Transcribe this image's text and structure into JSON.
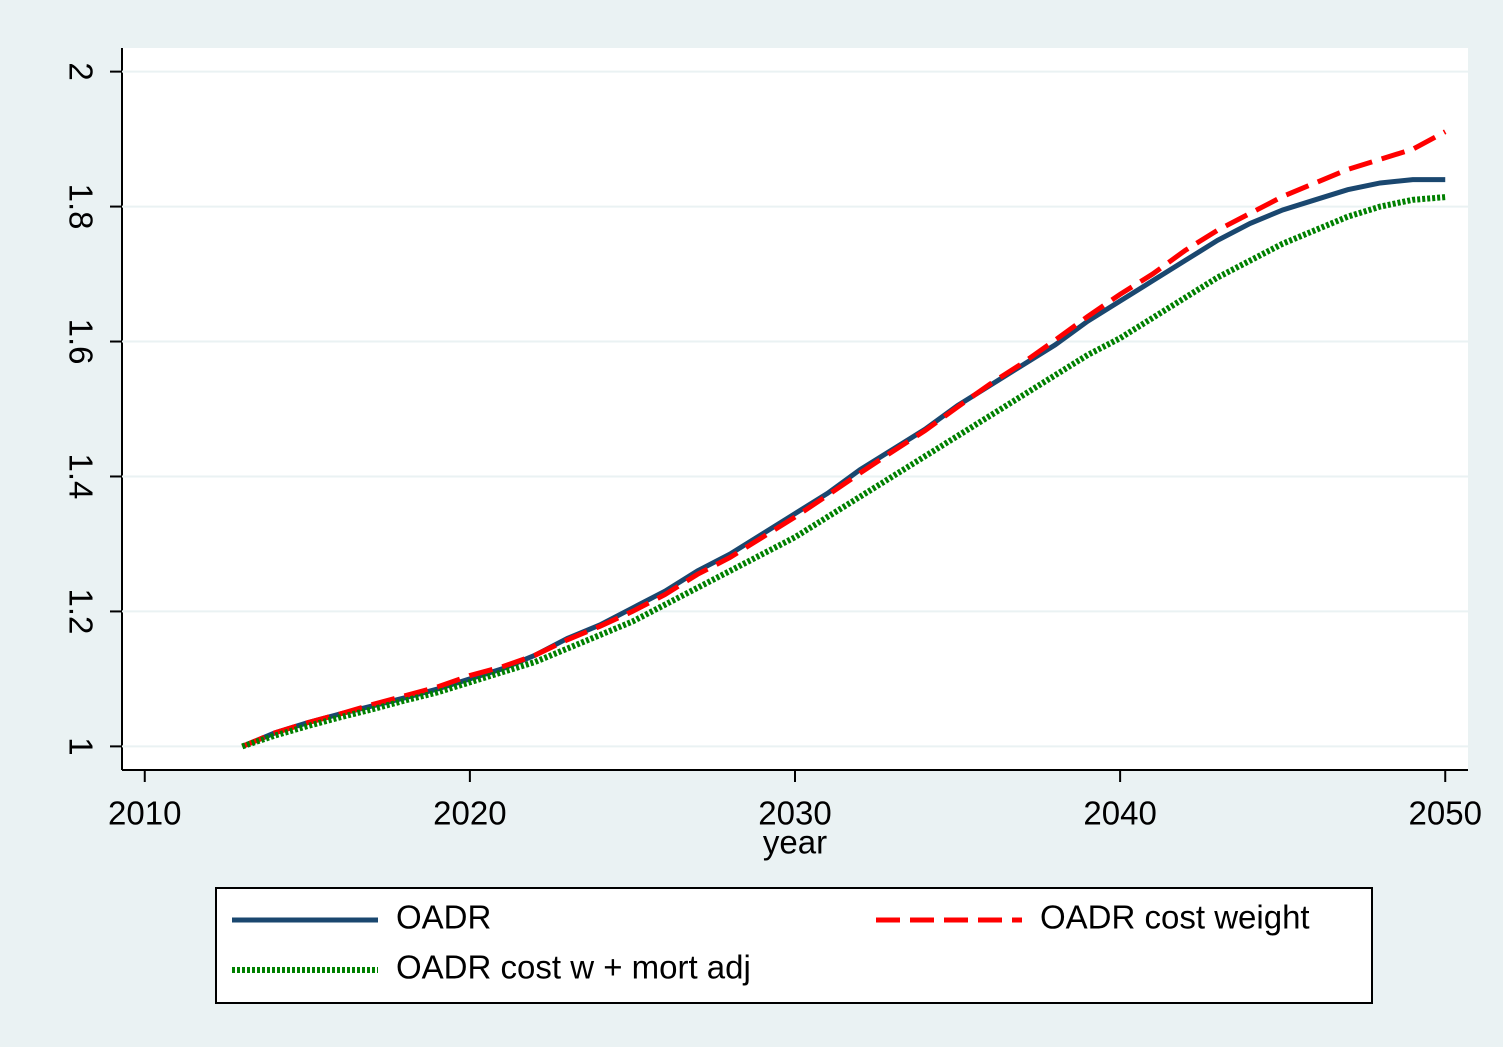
{
  "chart_data": {
    "type": "line",
    "x_label": "year",
    "x": [
      2013,
      2014,
      2015,
      2016,
      2017,
      2018,
      2019,
      2020,
      2021,
      2022,
      2023,
      2024,
      2025,
      2026,
      2027,
      2028,
      2029,
      2030,
      2031,
      2032,
      2033,
      2034,
      2035,
      2036,
      2037,
      2038,
      2039,
      2040,
      2041,
      2042,
      2043,
      2044,
      2045,
      2046,
      2047,
      2048,
      2049,
      2050
    ],
    "series": [
      {
        "name": "OADR",
        "color": "#1a476f",
        "style": "solid",
        "values": [
          1.0,
          1.02,
          1.035,
          1.048,
          1.06,
          1.072,
          1.085,
          1.1,
          1.115,
          1.135,
          1.16,
          1.18,
          1.205,
          1.23,
          1.26,
          1.285,
          1.315,
          1.345,
          1.375,
          1.41,
          1.44,
          1.47,
          1.505,
          1.535,
          1.565,
          1.595,
          1.63,
          1.66,
          1.69,
          1.72,
          1.75,
          1.775,
          1.795,
          1.81,
          1.825,
          1.835,
          1.84,
          1.84
        ]
      },
      {
        "name": "OADR cost weight",
        "color": "#ff0000",
        "style": "dash",
        "values": [
          1.0,
          1.02,
          1.035,
          1.048,
          1.062,
          1.075,
          1.088,
          1.105,
          1.118,
          1.135,
          1.158,
          1.178,
          1.2,
          1.225,
          1.255,
          1.28,
          1.31,
          1.34,
          1.372,
          1.405,
          1.437,
          1.468,
          1.503,
          1.537,
          1.568,
          1.602,
          1.637,
          1.67,
          1.7,
          1.735,
          1.765,
          1.79,
          1.815,
          1.835,
          1.855,
          1.87,
          1.885,
          1.911
        ]
      },
      {
        "name": "OADR cost w + mort adj",
        "color": "#008000",
        "style": "dot",
        "values": [
          1.0,
          1.016,
          1.03,
          1.043,
          1.055,
          1.068,
          1.08,
          1.095,
          1.11,
          1.125,
          1.145,
          1.165,
          1.185,
          1.21,
          1.235,
          1.26,
          1.285,
          1.31,
          1.34,
          1.37,
          1.4,
          1.43,
          1.46,
          1.49,
          1.52,
          1.55,
          1.58,
          1.605,
          1.635,
          1.665,
          1.695,
          1.72,
          1.745,
          1.765,
          1.785,
          1.8,
          1.81,
          1.814
        ]
      }
    ],
    "xlim": [
      2009.3,
      2050.7
    ],
    "xticks": [
      2010,
      2020,
      2030,
      2040,
      2050
    ],
    "ylim": [
      0.965,
      2.035
    ],
    "yticks": [
      1,
      1.2,
      1.4,
      1.6,
      1.8,
      2
    ],
    "grid": true
  }
}
